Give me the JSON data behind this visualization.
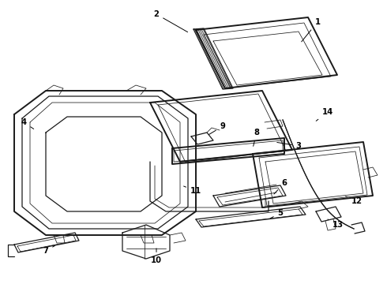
{
  "bg_color": "#ffffff",
  "line_color": "#1a1a1a",
  "lw_thick": 1.4,
  "lw_med": 0.9,
  "lw_thin": 0.55,
  "figsize": [
    4.9,
    3.6
  ],
  "dpi": 100
}
